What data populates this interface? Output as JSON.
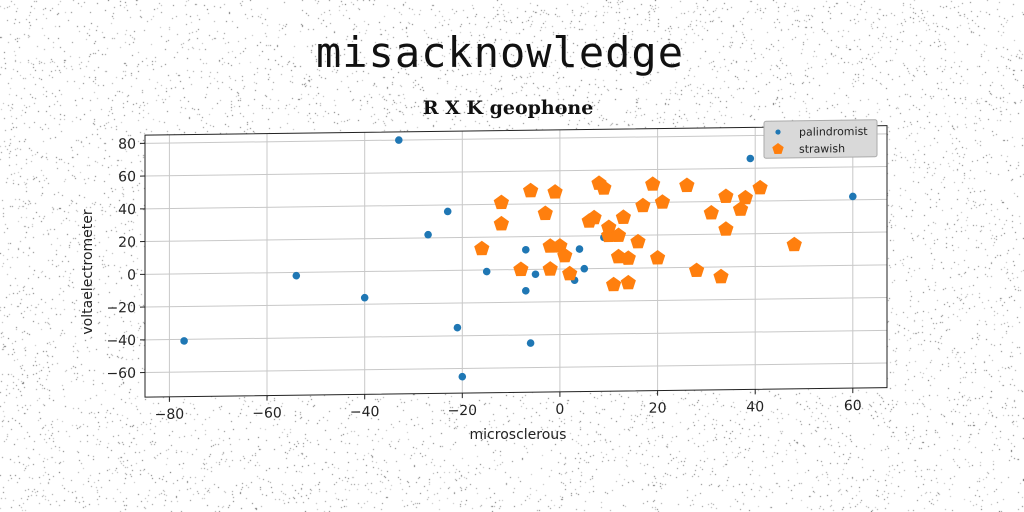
{
  "page": {
    "title": "misacknowledge"
  },
  "chart_data": {
    "type": "scatter",
    "title": "R X K geophone",
    "xlabel": "microsclerous",
    "ylabel": "voltaelectrometer",
    "xlim": [
      -85,
      67
    ],
    "ylim": [
      -75,
      85
    ],
    "xticks": [
      -80,
      -60,
      -40,
      -20,
      0,
      20,
      40,
      60
    ],
    "yticks": [
      -60,
      -40,
      -20,
      0,
      20,
      40,
      60,
      80
    ],
    "grid": true,
    "legend_position": "top-right",
    "series": [
      {
        "name": "palindromist",
        "color": "#1f77b4",
        "marker": "circle",
        "points": [
          [
            -77,
            -41
          ],
          [
            -54,
            -2
          ],
          [
            -40,
            -16
          ],
          [
            -33,
            80
          ],
          [
            -27,
            22
          ],
          [
            -23,
            36
          ],
          [
            -21,
            -35
          ],
          [
            -20,
            -65
          ],
          [
            -15,
            -1
          ],
          [
            -7,
            12
          ],
          [
            -7,
            -13
          ],
          [
            -6,
            -45
          ],
          [
            -5,
            -3
          ],
          [
            3,
            -7
          ],
          [
            4,
            12
          ],
          [
            5,
            0
          ],
          [
            9,
            19
          ],
          [
            39,
            66
          ],
          [
            60,
            42
          ]
        ]
      },
      {
        "name": "strawish",
        "color": "#ff7f0e",
        "marker": "pentagon",
        "points": [
          [
            -16,
            13
          ],
          [
            -12,
            28
          ],
          [
            -12,
            41
          ],
          [
            -8,
            0
          ],
          [
            -6,
            48
          ],
          [
            -3,
            34
          ],
          [
            -2,
            14
          ],
          [
            -2,
            0
          ],
          [
            -1,
            47
          ],
          [
            0,
            14
          ],
          [
            1,
            8
          ],
          [
            2,
            -3
          ],
          [
            6,
            29
          ],
          [
            7,
            31
          ],
          [
            8,
            52
          ],
          [
            9,
            49
          ],
          [
            10,
            25
          ],
          [
            10,
            20
          ],
          [
            11,
            -10
          ],
          [
            12,
            20
          ],
          [
            12,
            7
          ],
          [
            13,
            31
          ],
          [
            14,
            -9
          ],
          [
            14,
            6
          ],
          [
            16,
            16
          ],
          [
            17,
            38
          ],
          [
            19,
            51
          ],
          [
            20,
            6
          ],
          [
            21,
            40
          ],
          [
            26,
            50
          ],
          [
            28,
            -2
          ],
          [
            31,
            33
          ],
          [
            33,
            -6
          ],
          [
            34,
            23
          ],
          [
            34,
            43
          ],
          [
            37,
            35
          ],
          [
            38,
            42
          ],
          [
            41,
            48
          ],
          [
            48,
            13
          ]
        ]
      }
    ]
  }
}
